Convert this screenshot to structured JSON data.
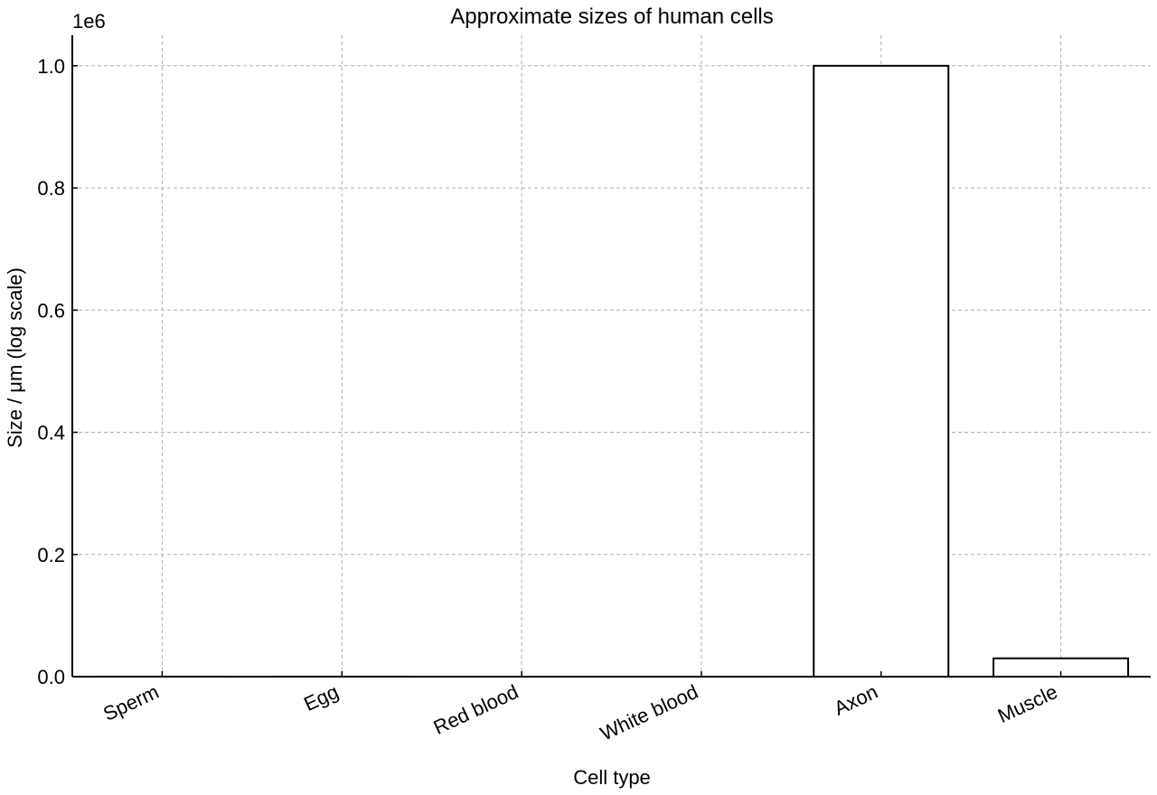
{
  "chart_data": {
    "type": "bar",
    "title": "Approximate sizes of human cells",
    "xlabel": "Cell type",
    "ylabel": "Size / μm (log scale)",
    "y_offset_text": "1e6",
    "categories": [
      "Sperm",
      "Egg",
      "Red blood",
      "White blood",
      "Axon",
      "Muscle"
    ],
    "values": [
      50,
      100,
      8,
      12,
      1000000,
      30000
    ],
    "ylim": [
      0,
      1050000
    ],
    "yticks": [
      0,
      200000,
      400000,
      600000,
      800000,
      1000000
    ],
    "ytick_labels": [
      "0.0",
      "0.2",
      "0.4",
      "0.6",
      "0.8",
      "1.0"
    ],
    "grid": true,
    "bar_fill": "#ffffff",
    "bar_edge": "#000000",
    "grid_color": "#b0b0b0"
  }
}
